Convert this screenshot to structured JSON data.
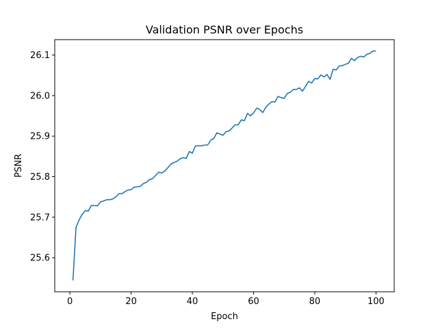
{
  "chart_data": {
    "type": "line",
    "title": "Validation PSNR over Epochs",
    "xlabel": "Epoch",
    "ylabel": "PSNR",
    "xlim": [
      -4.95,
      105.95
    ],
    "ylim": [
      25.516,
      26.138
    ],
    "xticks": [
      0,
      20,
      40,
      60,
      80,
      100
    ],
    "xtick_labels": [
      "0",
      "20",
      "40",
      "60",
      "80",
      "100"
    ],
    "yticks": [
      25.6,
      25.7,
      25.8,
      25.9,
      26.0,
      26.1
    ],
    "ytick_labels": [
      "25.6",
      "25.7",
      "25.8",
      "25.9",
      "26.0",
      "26.1"
    ],
    "grid": false,
    "series": [
      {
        "color": "#1f77b4",
        "x": [
          1,
          2,
          3,
          4,
          5,
          6,
          7,
          8,
          9,
          10,
          11,
          12,
          13,
          14,
          15,
          16,
          17,
          18,
          19,
          20,
          21,
          22,
          23,
          24,
          25,
          26,
          27,
          28,
          29,
          30,
          31,
          32,
          33,
          34,
          35,
          36,
          37,
          38,
          39,
          40,
          41,
          42,
          43,
          44,
          45,
          46,
          47,
          48,
          49,
          50,
          51,
          52,
          53,
          54,
          55,
          56,
          57,
          58,
          59,
          60,
          61,
          62,
          63,
          64,
          65,
          66,
          67,
          68,
          69,
          70,
          71,
          72,
          73,
          74,
          75,
          76,
          77,
          78,
          79,
          80,
          81,
          82,
          83,
          84,
          85,
          86,
          87,
          88,
          89,
          90,
          91,
          92,
          93,
          94,
          95,
          96,
          97,
          98,
          99,
          100
        ],
        "y": [
          25.544,
          25.675,
          25.693,
          25.707,
          25.716,
          25.715,
          25.729,
          25.729,
          25.728,
          25.738,
          25.74,
          25.743,
          25.743,
          25.745,
          25.75,
          25.758,
          25.758,
          25.763,
          25.767,
          25.768,
          25.774,
          25.775,
          25.776,
          25.783,
          25.786,
          25.793,
          25.795,
          25.803,
          25.811,
          25.809,
          25.814,
          25.822,
          25.831,
          25.835,
          25.838,
          25.844,
          25.847,
          25.845,
          25.862,
          25.858,
          25.876,
          25.876,
          25.876,
          25.878,
          25.878,
          25.89,
          25.894,
          25.908,
          25.905,
          25.902,
          25.911,
          25.913,
          25.92,
          25.928,
          25.928,
          25.94,
          25.938,
          25.956,
          25.95,
          25.957,
          25.969,
          25.966,
          25.958,
          25.971,
          25.979,
          25.985,
          25.984,
          25.998,
          25.995,
          25.993,
          26.005,
          26.008,
          26.015,
          26.015,
          26.019,
          26.011,
          26.023,
          26.035,
          26.031,
          26.042,
          26.041,
          26.051,
          26.046,
          26.052,
          26.04,
          26.065,
          26.063,
          26.073,
          26.074,
          26.077,
          26.08,
          26.092,
          26.086,
          26.094,
          26.097,
          26.095,
          26.102,
          26.104,
          26.11,
          26.11
        ]
      }
    ]
  }
}
